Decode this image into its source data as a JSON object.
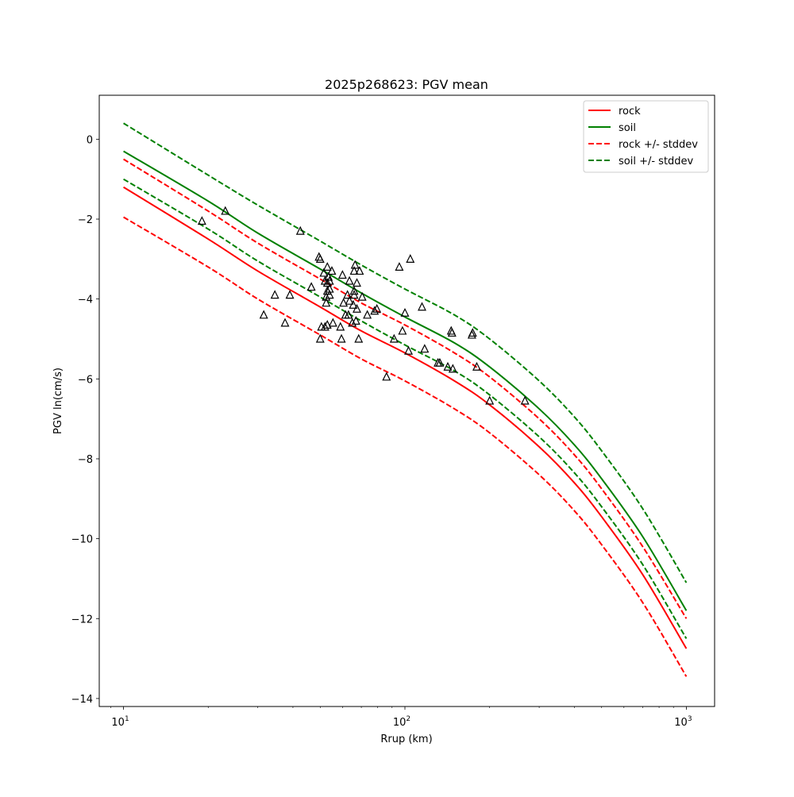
{
  "chart_data": {
    "type": "line",
    "title": "2025p268623: PGV mean",
    "xlabel": "Rrup (km)",
    "ylabel": "PGV ln(cm/s)",
    "xscale": "log",
    "xlim": [
      8.2,
      1260
    ],
    "ylim": [
      -14.2,
      1.1
    ],
    "grid": false,
    "legend_position": "top-right",
    "x_ticks": [
      10,
      100,
      1000
    ],
    "x_tick_labels": [
      {
        "base": "10",
        "exp": "1"
      },
      {
        "base": "10",
        "exp": "2"
      },
      {
        "base": "10",
        "exp": "3"
      }
    ],
    "y_ticks": [
      0,
      -2,
      -4,
      -6,
      -8,
      -10,
      -12,
      -14
    ],
    "y_tick_labels": [
      "0",
      "−2",
      "−4",
      "−6",
      "−8",
      "−10",
      "−12",
      "−14"
    ],
    "series": [
      {
        "name": "rock",
        "color": "#ff0000",
        "style": "solid",
        "x": [
          10,
          20,
          30,
          50,
          70,
          100,
          150,
          200,
          300,
          400,
          500,
          700,
          1000
        ],
        "y": [
          -1.2,
          -2.5,
          -3.3,
          -4.2,
          -4.8,
          -5.35,
          -6.05,
          -6.65,
          -7.7,
          -8.6,
          -9.45,
          -10.9,
          -12.75
        ]
      },
      {
        "name": "soil",
        "color": "#008000",
        "style": "solid",
        "x": [
          10,
          20,
          30,
          50,
          70,
          100,
          150,
          200,
          300,
          400,
          500,
          700,
          1000
        ],
        "y": [
          -0.3,
          -1.55,
          -2.35,
          -3.25,
          -3.85,
          -4.45,
          -5.1,
          -5.7,
          -6.75,
          -7.65,
          -8.5,
          -9.95,
          -11.8
        ]
      },
      {
        "name": "rock +/- stddev",
        "color": "#ff0000",
        "style": "dashed",
        "x": [
          10,
          20,
          30,
          50,
          70,
          100,
          150,
          200,
          300,
          400,
          500,
          700,
          1000
        ],
        "y": [
          -0.5,
          -1.8,
          -2.6,
          -3.5,
          -4.1,
          -4.65,
          -5.35,
          -5.95,
          -7.0,
          -7.9,
          -8.75,
          -10.2,
          -12.0
        ]
      },
      {
        "name": "rock +/- stddev",
        "color": "#ff0000",
        "style": "dashed",
        "legend": false,
        "x": [
          10,
          20,
          30,
          50,
          70,
          100,
          150,
          200,
          300,
          400,
          500,
          700,
          1000
        ],
        "y": [
          -1.95,
          -3.2,
          -4.0,
          -4.9,
          -5.5,
          -6.05,
          -6.75,
          -7.35,
          -8.4,
          -9.3,
          -10.15,
          -11.6,
          -13.45
        ]
      },
      {
        "name": "soil +/- stddev",
        "color": "#008000",
        "style": "dashed",
        "x": [
          10,
          20,
          30,
          50,
          70,
          100,
          150,
          200,
          300,
          400,
          500,
          700,
          1000
        ],
        "y": [
          0.4,
          -0.9,
          -1.65,
          -2.55,
          -3.15,
          -3.75,
          -4.4,
          -5.0,
          -6.05,
          -6.95,
          -7.8,
          -9.25,
          -11.1
        ]
      },
      {
        "name": "soil +/- stddev",
        "color": "#008000",
        "style": "dashed",
        "legend": false,
        "x": [
          10,
          20,
          30,
          50,
          70,
          100,
          150,
          200,
          300,
          400,
          500,
          700,
          1000
        ],
        "y": [
          -1.0,
          -2.25,
          -3.05,
          -3.95,
          -4.55,
          -5.15,
          -5.8,
          -6.4,
          -7.45,
          -8.35,
          -9.2,
          -10.65,
          -12.5
        ]
      }
    ],
    "observations": {
      "marker": "triangle",
      "color": "#000000",
      "points": [
        [
          19,
          -2.05
        ],
        [
          23,
          -1.8
        ],
        [
          31.5,
          -4.4
        ],
        [
          34.5,
          -3.9
        ],
        [
          37.5,
          -4.6
        ],
        [
          39,
          -3.9
        ],
        [
          42.5,
          -2.3
        ],
        [
          46.5,
          -3.7
        ],
        [
          49.5,
          -2.95
        ],
        [
          50,
          -3.0
        ],
        [
          50,
          -5.0
        ],
        [
          50.5,
          -4.7
        ],
        [
          51.5,
          -3.35
        ],
        [
          52,
          -3.55
        ],
        [
          52,
          -4.7
        ],
        [
          52.5,
          -3.95
        ],
        [
          52.5,
          -4.1
        ],
        [
          53,
          -3.2
        ],
        [
          53,
          -3.6
        ],
        [
          53,
          -3.8
        ],
        [
          53.5,
          -3.45
        ],
        [
          54,
          -3.55
        ],
        [
          54,
          -3.75
        ],
        [
          54,
          -3.9
        ],
        [
          53,
          -4.65
        ],
        [
          55,
          -3.3
        ],
        [
          55.5,
          -4.6
        ],
        [
          59,
          -4.7
        ],
        [
          59.5,
          -5.0
        ],
        [
          60,
          -3.4
        ],
        [
          60.5,
          -4.1
        ],
        [
          61.5,
          -4.4
        ],
        [
          62.5,
          -3.9
        ],
        [
          63,
          -4.4
        ],
        [
          63.5,
          -4.05
        ],
        [
          63.5,
          -3.55
        ],
        [
          65,
          -4.6
        ],
        [
          65.5,
          -4.15
        ],
        [
          66,
          -3.3
        ],
        [
          66,
          -3.9
        ],
        [
          66,
          -3.8
        ],
        [
          66.5,
          -3.15
        ],
        [
          67,
          -4.55
        ],
        [
          67.5,
          -3.6
        ],
        [
          67.5,
          -4.25
        ],
        [
          68.5,
          -5.0
        ],
        [
          69,
          -3.3
        ],
        [
          70.5,
          -3.95
        ],
        [
          73.5,
          -4.4
        ],
        [
          78,
          -4.3
        ],
        [
          79.5,
          -4.25
        ],
        [
          86,
          -5.95
        ],
        [
          91.5,
          -5.0
        ],
        [
          95.5,
          -3.2
        ],
        [
          98,
          -4.8
        ],
        [
          100,
          -4.35
        ],
        [
          103,
          -5.3
        ],
        [
          104.5,
          -3.0
        ],
        [
          115,
          -4.2
        ],
        [
          117.5,
          -5.25
        ],
        [
          131,
          -5.6
        ],
        [
          133,
          -5.6
        ],
        [
          142,
          -5.7
        ],
        [
          146,
          -4.8
        ],
        [
          147,
          -4.85
        ],
        [
          148,
          -5.75
        ],
        [
          173,
          -4.9
        ],
        [
          174,
          -4.85
        ],
        [
          180,
          -5.7
        ],
        [
          200,
          -6.55
        ],
        [
          267,
          -6.55
        ]
      ]
    }
  }
}
